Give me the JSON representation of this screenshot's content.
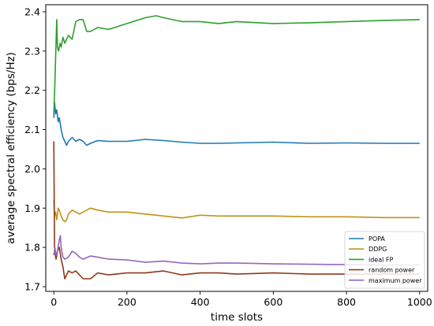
{
  "chart_data": {
    "type": "line",
    "title": "",
    "xlabel": "time slots",
    "ylabel": "average spectral efficiency (bps/Hz)",
    "xlim": [
      -22,
      1022
    ],
    "ylim": [
      1.688,
      2.418
    ],
    "xticks": [
      0,
      200,
      400,
      600,
      800,
      1000
    ],
    "yticks": [
      1.7,
      1.8,
      1.9,
      2.0,
      2.1,
      2.2,
      2.3,
      2.4
    ],
    "xtick_labels": [
      "0",
      "200",
      "400",
      "600",
      "800",
      "1000"
    ],
    "ytick_labels": [
      "1.7",
      "1.8",
      "1.9",
      "2.0",
      "2.1",
      "2.2",
      "2.3",
      "2.4"
    ],
    "grid": false,
    "legend_position": "lower-right",
    "series": [
      {
        "name": "POPA",
        "color": "#1f77b4",
        "x": [
          0,
          2,
          5,
          8,
          12,
          15,
          20,
          25,
          30,
          35,
          40,
          50,
          60,
          70,
          80,
          90,
          100,
          120,
          150,
          200,
          250,
          300,
          350,
          400,
          450,
          500,
          600,
          700,
          800,
          900,
          1000
        ],
        "y": [
          2.13,
          2.17,
          2.14,
          2.15,
          2.12,
          2.13,
          2.1,
          2.08,
          2.07,
          2.06,
          2.07,
          2.08,
          2.07,
          2.075,
          2.07,
          2.06,
          2.065,
          2.072,
          2.07,
          2.07,
          2.075,
          2.072,
          2.068,
          2.065,
          2.065,
          2.066,
          2.068,
          2.065,
          2.066,
          2.065,
          2.065
        ]
      },
      {
        "name": "DDPG",
        "color": "#bf9319",
        "x": [
          0,
          2,
          5,
          8,
          12,
          15,
          20,
          25,
          30,
          35,
          40,
          50,
          60,
          70,
          80,
          100,
          120,
          150,
          200,
          250,
          300,
          350,
          400,
          450,
          500,
          600,
          700,
          800,
          900,
          1000
        ],
        "y": [
          1.92,
          1.88,
          1.89,
          1.87,
          1.9,
          1.895,
          1.88,
          1.87,
          1.865,
          1.87,
          1.885,
          1.895,
          1.89,
          1.885,
          1.89,
          1.9,
          1.895,
          1.89,
          1.89,
          1.885,
          1.88,
          1.875,
          1.882,
          1.88,
          1.88,
          1.88,
          1.878,
          1.878,
          1.876,
          1.876
        ]
      },
      {
        "name": "ideal FP",
        "color": "#2ca02c",
        "x": [
          0,
          3,
          6,
          8,
          10,
          13,
          17,
          20,
          25,
          30,
          40,
          50,
          60,
          70,
          80,
          90,
          100,
          120,
          150,
          200,
          250,
          280,
          300,
          350,
          400,
          450,
          500,
          600,
          700,
          800,
          900,
          1000
        ],
        "y": [
          2.14,
          2.22,
          2.32,
          2.38,
          2.31,
          2.3,
          2.32,
          2.31,
          2.335,
          2.32,
          2.34,
          2.33,
          2.375,
          2.38,
          2.38,
          2.35,
          2.35,
          2.36,
          2.355,
          2.37,
          2.385,
          2.39,
          2.385,
          2.375,
          2.375,
          2.37,
          2.375,
          2.37,
          2.372,
          2.375,
          2.378,
          2.38
        ]
      },
      {
        "name": "random power",
        "color": "#8c3a1a",
        "x": [
          0,
          2,
          4,
          6,
          10,
          15,
          20,
          25,
          30,
          35,
          40,
          50,
          60,
          70,
          80,
          90,
          100,
          120,
          150,
          200,
          250,
          300,
          350,
          400,
          450,
          500,
          600,
          700,
          800,
          900,
          1000
        ],
        "y": [
          2.07,
          1.8,
          1.78,
          1.77,
          1.79,
          1.8,
          1.77,
          1.75,
          1.72,
          1.73,
          1.74,
          1.735,
          1.74,
          1.73,
          1.72,
          1.72,
          1.72,
          1.735,
          1.73,
          1.735,
          1.735,
          1.74,
          1.73,
          1.735,
          1.735,
          1.732,
          1.735,
          1.732,
          1.732,
          1.732,
          1.732
        ]
      },
      {
        "name": "maximum power",
        "color": "#9467bd",
        "x": [
          0,
          3,
          6,
          10,
          15,
          18,
          20,
          25,
          30,
          40,
          50,
          60,
          70,
          80,
          100,
          120,
          150,
          200,
          250,
          300,
          350,
          400,
          450,
          500,
          600,
          700,
          800,
          900,
          1000
        ],
        "y": [
          1.78,
          1.8,
          1.78,
          1.79,
          1.82,
          1.83,
          1.8,
          1.775,
          1.77,
          1.775,
          1.79,
          1.785,
          1.775,
          1.77,
          1.778,
          1.775,
          1.77,
          1.768,
          1.762,
          1.765,
          1.76,
          1.758,
          1.76,
          1.76,
          1.758,
          1.757,
          1.756,
          1.755,
          1.755
        ]
      }
    ]
  }
}
